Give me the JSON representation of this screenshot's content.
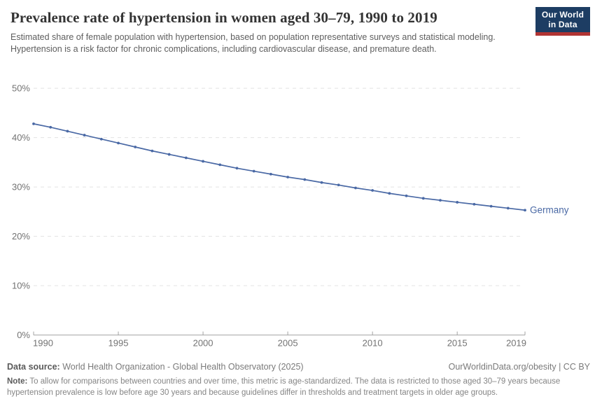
{
  "header": {
    "title": "Prevalence rate of hypertension in women aged 30–79, 1990 to 2019",
    "subtitle": "Estimated share of female population with hypertension, based on population representative surveys and statistical modeling. Hypertension is a risk factor for chronic complications, including cardiovascular disease, and premature death.",
    "logo": {
      "line1": "Our World",
      "line2": "in Data"
    }
  },
  "chart_data": {
    "type": "line",
    "title": "Prevalence rate of hypertension in women aged 30–79, 1990 to 2019",
    "xlabel": "",
    "ylabel": "",
    "xlim": [
      1990,
      2019
    ],
    "ylim": [
      0,
      50
    ],
    "grid": "horizontal-dashed",
    "legend_position": "end-of-line",
    "x_ticks": [
      1990,
      1995,
      2000,
      2005,
      2010,
      2015,
      2019
    ],
    "x_tick_labels": [
      "1990",
      "1995",
      "2000",
      "2005",
      "2010",
      "2015",
      "2019"
    ],
    "y_ticks": [
      0,
      10,
      20,
      30,
      40,
      50
    ],
    "y_tick_labels": [
      "0%",
      "10%",
      "20%",
      "30%",
      "40%",
      "50%"
    ],
    "series": [
      {
        "name": "Germany",
        "color": "#4a69a5",
        "x": [
          1990,
          1991,
          1992,
          1993,
          1994,
          1995,
          1996,
          1997,
          1998,
          1999,
          2000,
          2001,
          2002,
          2003,
          2004,
          2005,
          2006,
          2007,
          2008,
          2009,
          2010,
          2011,
          2012,
          2013,
          2014,
          2015,
          2016,
          2017,
          2018,
          2019
        ],
        "values": [
          42.8,
          42.1,
          41.3,
          40.5,
          39.7,
          38.9,
          38.1,
          37.3,
          36.6,
          35.9,
          35.2,
          34.5,
          33.8,
          33.2,
          32.6,
          32.0,
          31.5,
          30.9,
          30.4,
          29.8,
          29.3,
          28.7,
          28.2,
          27.7,
          27.3,
          26.9,
          26.5,
          26.1,
          25.7,
          25.3
        ]
      }
    ]
  },
  "footer": {
    "datasource_label": "Data source:",
    "datasource_text": " World Health Organization - Global Health Observatory (2025)",
    "attribution": "OurWorldinData.org/obesity | CC BY",
    "note_label": "Note:",
    "note_text": " To allow for comparisons between countries and over time, this metric is age-standardized. The data is restricted to those aged 30–79 years because hypertension prevalence is low before age 30 years and because guidelines differ in thresholds and treatment targets in older age groups."
  },
  "colors": {
    "series": "#4a69a5",
    "grid": "#e3e3e3",
    "axis": "#a3a3a3",
    "tick_label": "#737373",
    "logo_bg": "#1d3d63",
    "logo_stripe": "#b13433"
  }
}
